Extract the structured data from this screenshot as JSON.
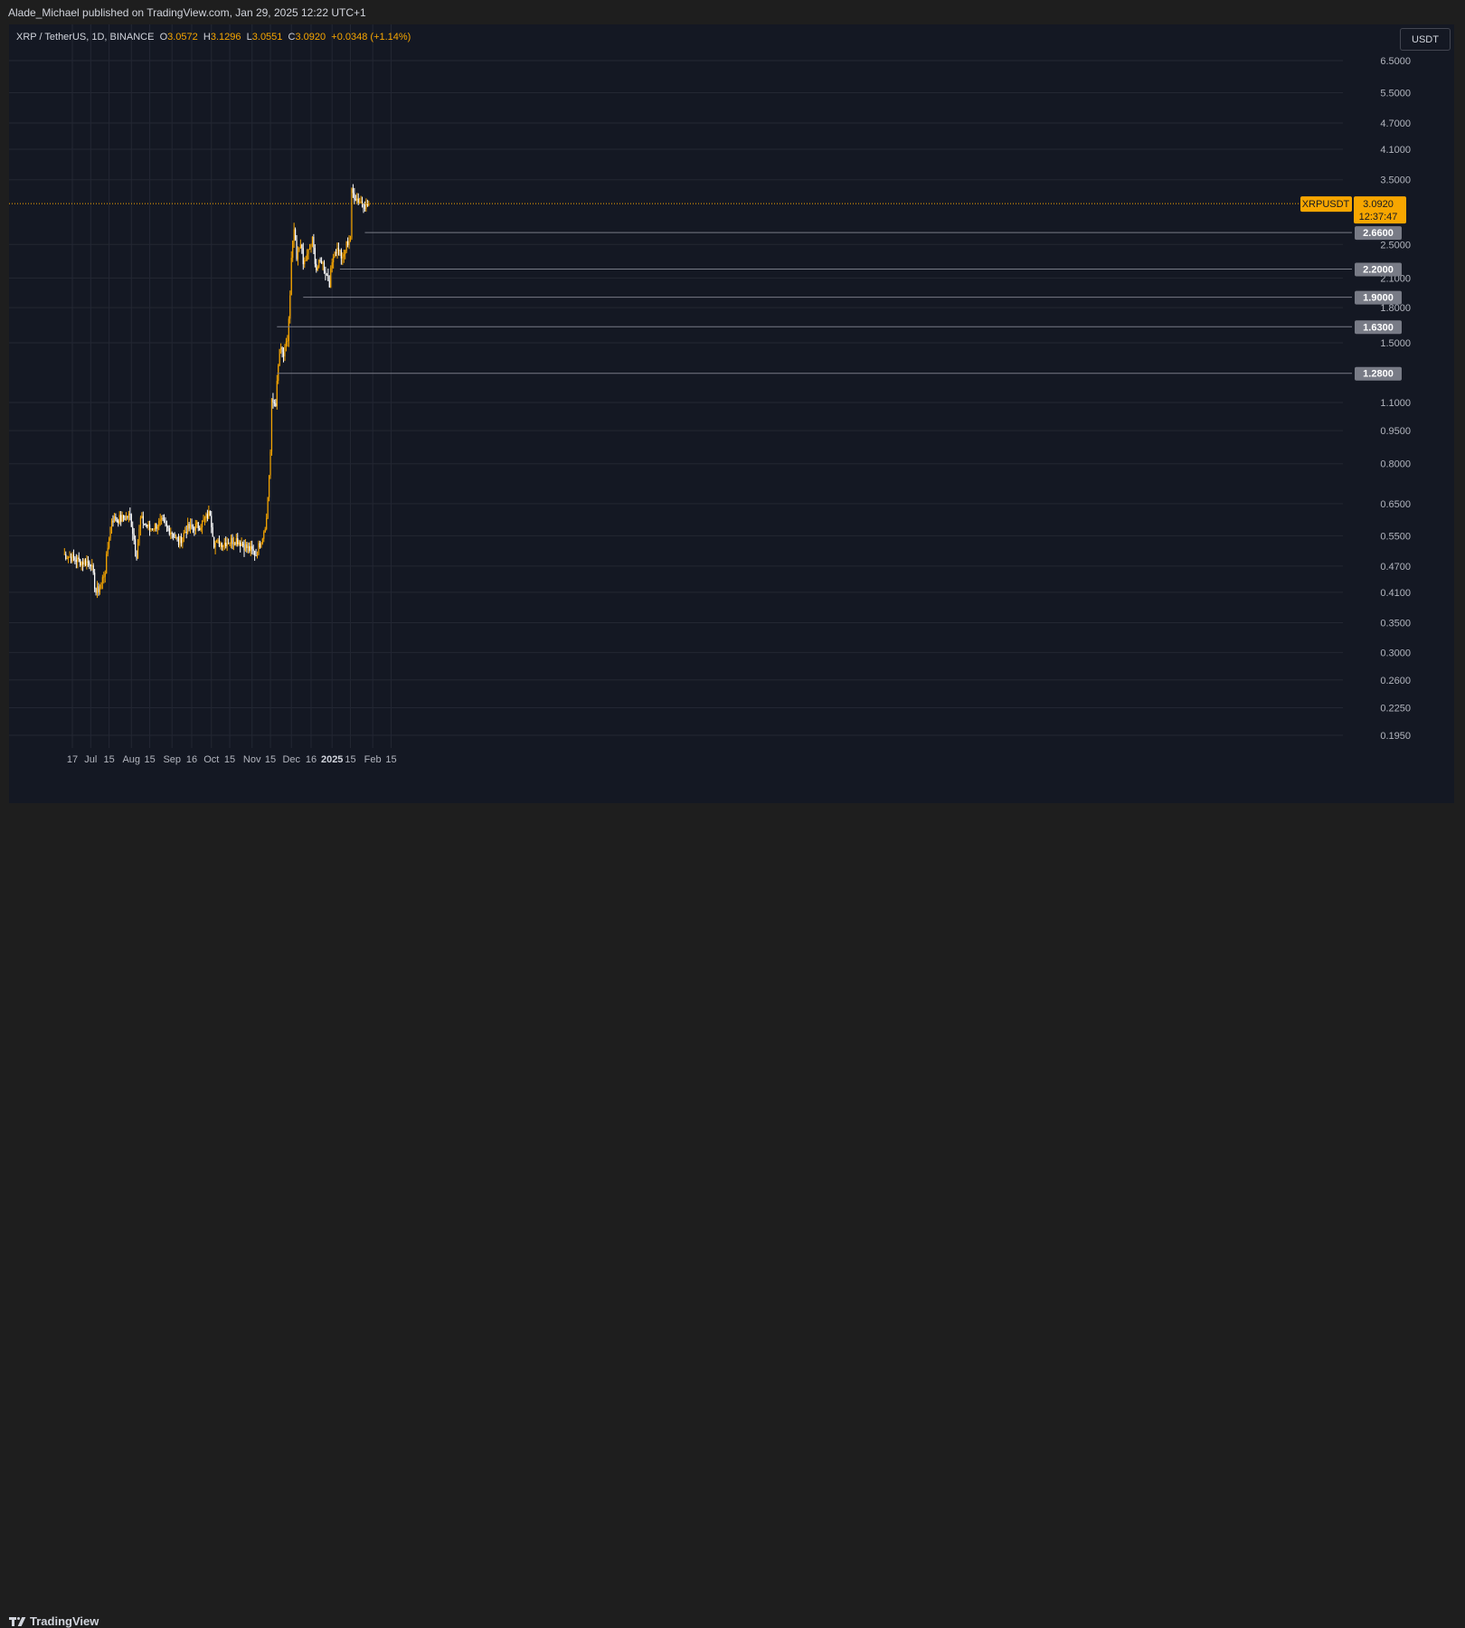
{
  "header": {
    "publisher_text": "Alade_Michael published on TradingView.com, Jan 29, 2025 12:22 UTC+1"
  },
  "legend": {
    "symbol": "XRP / TetherUS, 1D, BINANCE",
    "open_label": "O",
    "open_value": "3.0572",
    "high_label": "H",
    "high_value": "3.1296",
    "low_label": "L",
    "low_value": "3.0551",
    "close_label": "C",
    "close_value": "3.0920",
    "change": "+0.0348 (+1.14%)"
  },
  "currency_button": "USDT",
  "footer": {
    "brand": "TradingView"
  },
  "colors": {
    "background": "#141823",
    "up_candle": "#f7a600",
    "down_candle": "#ffffff",
    "grid": "#232733",
    "axis_text": "#b2b5be",
    "price_line": "#f7a600",
    "level_badge": "#787b86"
  },
  "chart_data": {
    "type": "candlestick",
    "symbol": "XRPUSDT",
    "y_scale": "log",
    "y_ticks": [
      "6.5000",
      "5.5000",
      "4.7000",
      "4.1000",
      "3.5000",
      "2.5000",
      "2.1000",
      "1.8000",
      "1.5000",
      "1.1000",
      "0.9500",
      "0.8000",
      "0.6500",
      "0.5500",
      "0.4700",
      "0.4100",
      "0.3500",
      "0.3000",
      "0.2600",
      "0.2250",
      "0.1950"
    ],
    "x_ticks": [
      "17",
      "Jul",
      "15",
      "Aug",
      "15",
      "Sep",
      "16",
      "Oct",
      "15",
      "Nov",
      "15",
      "Dec",
      "16",
      "2025",
      "15",
      "Feb",
      "15"
    ],
    "bold_x_ticks": [
      "2025"
    ],
    "current_price": {
      "label": "XRPUSDT",
      "value": "3.0920",
      "countdown": "12:37:47"
    },
    "levels": [
      {
        "value": "2.6600",
        "from": "2025-01-26"
      },
      {
        "value": "2.2000",
        "from": "2025-01-07"
      },
      {
        "value": "1.9000",
        "from": "2024-12-10"
      },
      {
        "value": "1.6300",
        "from": "2024-11-20"
      },
      {
        "value": "1.2800",
        "from": "2024-11-20"
      }
    ],
    "key_points": [
      [
        "2024-06-10",
        0.5
      ],
      [
        "2024-06-17",
        0.49
      ],
      [
        "2024-06-24",
        0.48
      ],
      [
        "2024-07-01",
        0.48
      ],
      [
        "2024-07-05",
        0.41
      ],
      [
        "2024-07-08",
        0.42
      ],
      [
        "2024-07-12",
        0.46
      ],
      [
        "2024-07-15",
        0.55
      ],
      [
        "2024-07-17",
        0.6
      ],
      [
        "2024-07-24",
        0.6
      ],
      [
        "2024-07-31",
        0.61
      ],
      [
        "2024-08-05",
        0.5
      ],
      [
        "2024-08-08",
        0.6
      ],
      [
        "2024-08-15",
        0.57
      ],
      [
        "2024-08-24",
        0.59
      ],
      [
        "2024-09-01",
        0.56
      ],
      [
        "2024-09-06",
        0.53
      ],
      [
        "2024-09-12",
        0.57
      ],
      [
        "2024-09-22",
        0.58
      ],
      [
        "2024-09-30",
        0.62
      ],
      [
        "2024-10-03",
        0.53
      ],
      [
        "2024-10-10",
        0.53
      ],
      [
        "2024-10-20",
        0.54
      ],
      [
        "2024-10-27",
        0.52
      ],
      [
        "2024-11-04",
        0.5
      ],
      [
        "2024-11-09",
        0.55
      ],
      [
        "2024-11-12",
        0.6
      ],
      [
        "2024-11-15",
        0.85
      ],
      [
        "2024-11-16",
        1.1
      ],
      [
        "2024-11-19",
        1.1
      ],
      [
        "2024-11-22",
        1.45
      ],
      [
        "2024-11-25",
        1.4
      ],
      [
        "2024-11-28",
        1.52
      ],
      [
        "2024-11-30",
        1.9
      ],
      [
        "2024-12-01",
        2.3
      ],
      [
        "2024-12-03",
        2.7
      ],
      [
        "2024-12-05",
        2.3
      ],
      [
        "2024-12-08",
        2.55
      ],
      [
        "2024-12-10",
        2.25
      ],
      [
        "2024-12-13",
        2.35
      ],
      [
        "2024-12-17",
        2.55
      ],
      [
        "2024-12-20",
        2.2
      ],
      [
        "2024-12-24",
        2.3
      ],
      [
        "2024-12-30",
        2.05
      ],
      [
        "2025-01-02",
        2.4
      ],
      [
        "2025-01-06",
        2.45
      ],
      [
        "2025-01-09",
        2.3
      ],
      [
        "2025-01-12",
        2.5
      ],
      [
        "2025-01-15",
        2.6
      ],
      [
        "2025-01-16",
        3.28
      ],
      [
        "2025-01-19",
        3.2
      ],
      [
        "2025-01-21",
        3.15
      ],
      [
        "2025-01-25",
        3.1
      ],
      [
        "2025-01-27",
        3.05
      ],
      [
        "2025-01-29",
        3.092
      ]
    ]
  }
}
